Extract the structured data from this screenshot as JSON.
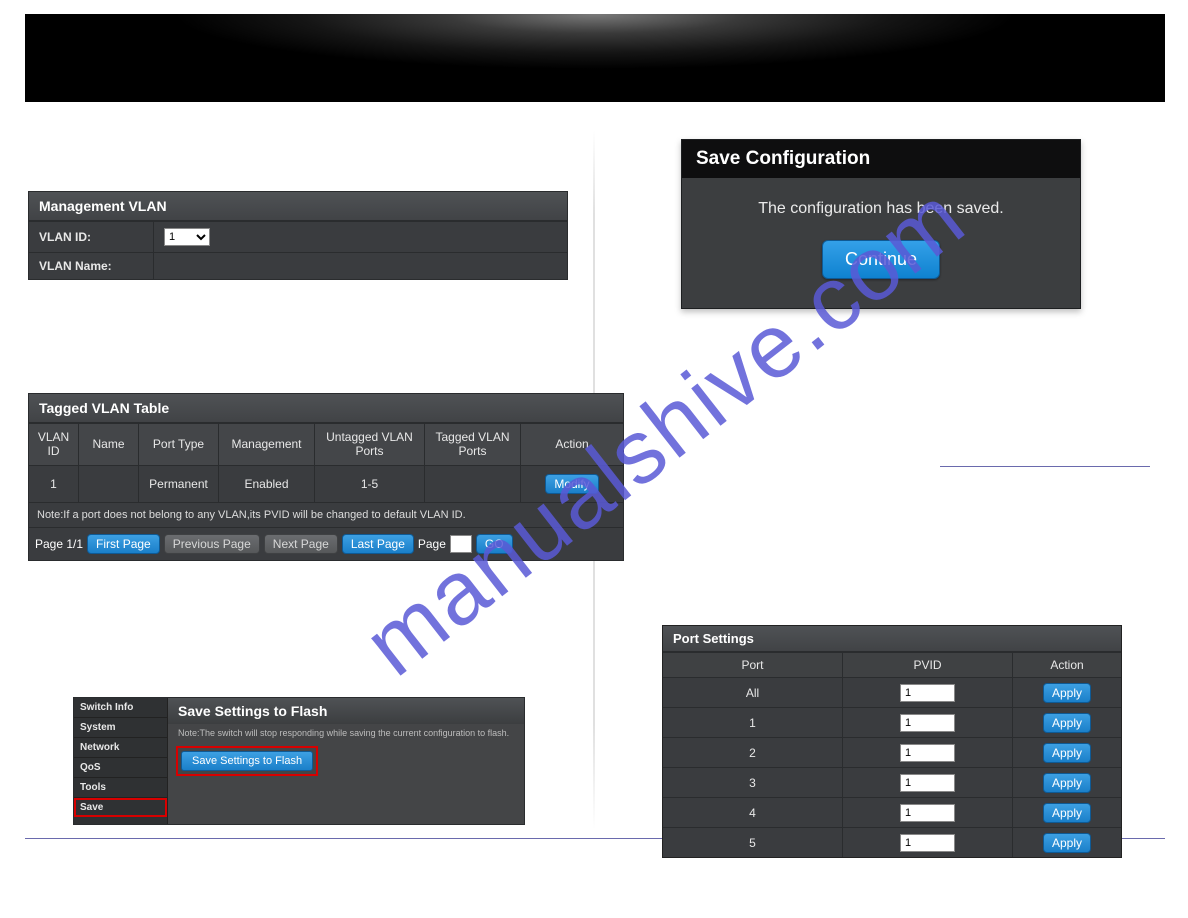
{
  "colors": {
    "accent": "#2a8fd1",
    "accent_border": "#0e5a95",
    "disabled": "#606264",
    "panel_bg": "#3a3c3f",
    "header_bg": "#464a4d",
    "border": "#2a2c2e",
    "highlight_red": "#d80000",
    "watermark": "#5a5ad6"
  },
  "watermark_text": "manualshive.com",
  "management_vlan": {
    "title": "Management VLAN",
    "rows": [
      {
        "label": "VLAN ID:",
        "value_type": "select",
        "value": "1"
      },
      {
        "label": "VLAN Name:",
        "value_type": "text",
        "value": ""
      }
    ]
  },
  "tagged_vlan": {
    "title": "Tagged VLAN Table",
    "columns": [
      "VLAN ID",
      "Name",
      "Port Type",
      "Management",
      "Untagged VLAN Ports",
      "Tagged VLAN Ports",
      "Action"
    ],
    "row": {
      "vlan_id": "1",
      "name": "",
      "port_type": "Permanent",
      "management": "Enabled",
      "untagged": "1-5",
      "tagged": "",
      "action_label": "Modify"
    },
    "note": "Note:If a port does not belong to any VLAN,its PVID will be changed to default VLAN ID.",
    "pager": {
      "page_label": "Page 1/1",
      "first": "First Page",
      "prev": "Previous Page",
      "next": "Next Page",
      "last": "Last Page",
      "page_text": "Page",
      "go": "GO",
      "prev_disabled": true,
      "next_disabled": true
    }
  },
  "save_flash": {
    "sidebar_items": [
      "Switch Info",
      "System",
      "Network",
      "QoS",
      "Tools",
      "Save"
    ],
    "highlight_item_index": 5,
    "title": "Save Settings to Flash",
    "note": "Note:The switch will stop responding while saving the current configuration to flash.",
    "button": "Save Settings to Flash"
  },
  "save_config": {
    "title": "Save Configuration",
    "message": "The configuration has been saved.",
    "button": "Continue"
  },
  "port_settings": {
    "title": "Port Settings",
    "columns": [
      "Port",
      "PVID",
      "Action"
    ],
    "rows": [
      {
        "port": "All",
        "pvid": "1",
        "action": "Apply"
      },
      {
        "port": "1",
        "pvid": "1",
        "action": "Apply"
      },
      {
        "port": "2",
        "pvid": "1",
        "action": "Apply"
      },
      {
        "port": "3",
        "pvid": "1",
        "action": "Apply"
      },
      {
        "port": "4",
        "pvid": "1",
        "action": "Apply"
      },
      {
        "port": "5",
        "pvid": "1",
        "action": "Apply"
      }
    ]
  }
}
